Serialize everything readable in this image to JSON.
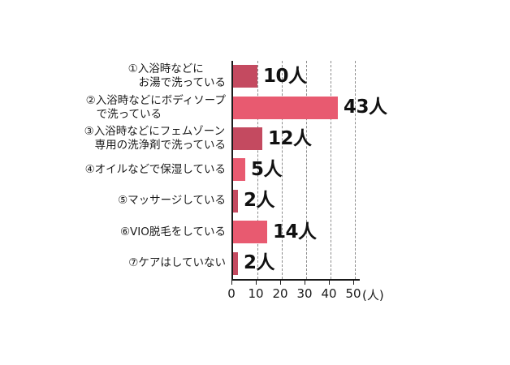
{
  "chart_data": {
    "type": "bar",
    "orientation": "horizontal",
    "title": "",
    "xlabel_unit": "(人)",
    "xlim": [
      0,
      50
    ],
    "x_ticks": [
      0,
      10,
      20,
      30,
      40,
      50
    ],
    "x_tick_labels": [
      "0",
      "10",
      "20",
      "30",
      "40",
      "50"
    ],
    "grid": "dashed-vertical",
    "legend": "none",
    "colors": {
      "dark_bar": "#c44a60",
      "light_bar": "#e85a70",
      "axis": "#1a1a1a",
      "gridline": "#8c8c8c",
      "text": "#1a1a1a"
    },
    "rows": [
      {
        "label": "①入浴時などに\nお湯で洗っている",
        "value": 10,
        "value_label": "10人",
        "color": "dark_bar"
      },
      {
        "label": "②入浴時などにボディソープ\nで洗っている",
        "value": 43,
        "value_label": "43人",
        "color": "light_bar"
      },
      {
        "label": "③入浴時などにフェムゾーン\n専用の洗浄剤で洗っている",
        "value": 12,
        "value_label": "12人",
        "color": "dark_bar"
      },
      {
        "label": "④オイルなどで保湿している",
        "value": 5,
        "value_label": "5人",
        "color": "light_bar"
      },
      {
        "label": "⑤マッサージしている",
        "value": 2,
        "value_label": "2人",
        "color": "dark_bar"
      },
      {
        "label": "⑥VIO脱毛をしている",
        "value": 14,
        "value_label": "14人",
        "color": "light_bar"
      },
      {
        "label": "⑦ケアはしていない",
        "value": 2,
        "value_label": "2人",
        "color": "dark_bar"
      }
    ]
  }
}
